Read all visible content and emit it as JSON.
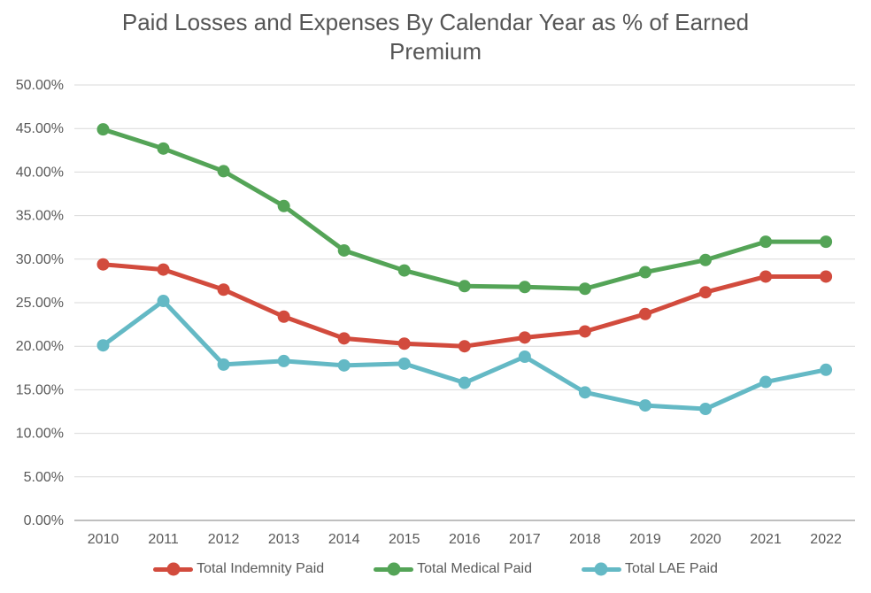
{
  "chart_data": {
    "type": "line",
    "title": "Paid Losses and Expenses By Calendar Year as % of Earned Premium",
    "title_lines": [
      "Paid Losses and Expenses By Calendar Year as % of Earned",
      "Premium"
    ],
    "xlabel": "",
    "ylabel": "",
    "categories": [
      "2010",
      "2011",
      "2012",
      "2013",
      "2014",
      "2015",
      "2016",
      "2017",
      "2018",
      "2019",
      "2020",
      "2021",
      "2022"
    ],
    "ylim": [
      0,
      50
    ],
    "ytick_step": 5,
    "ytick_labels": [
      "0.00%",
      "5.00%",
      "10.00%",
      "15.00%",
      "20.00%",
      "25.00%",
      "30.00%",
      "35.00%",
      "40.00%",
      "45.00%",
      "50.00%"
    ],
    "grid": true,
    "legend_position": "bottom",
    "series": [
      {
        "name": "Total Indemnity Paid",
        "color": "#d24b3d",
        "values": [
          29.4,
          28.8,
          26.5,
          23.4,
          20.9,
          20.3,
          20.0,
          21.0,
          21.7,
          23.7,
          26.2,
          28.0,
          28.0
        ]
      },
      {
        "name": "Total Medical Paid",
        "color": "#54a457",
        "values": [
          44.9,
          42.7,
          40.1,
          36.1,
          31.0,
          28.7,
          26.9,
          26.8,
          26.6,
          28.5,
          29.9,
          32.0,
          32.0
        ]
      },
      {
        "name": "Total LAE Paid",
        "color": "#64b9c5",
        "values": [
          20.1,
          25.2,
          17.9,
          18.3,
          17.8,
          18.0,
          15.8,
          18.8,
          14.7,
          13.2,
          12.8,
          15.9,
          17.3
        ]
      }
    ],
    "colors": {
      "gridline": "#d9d9d9",
      "axis_line": "#bfbfbf",
      "tick_label": "#595959",
      "title": "#555555",
      "background": "#ffffff"
    }
  }
}
